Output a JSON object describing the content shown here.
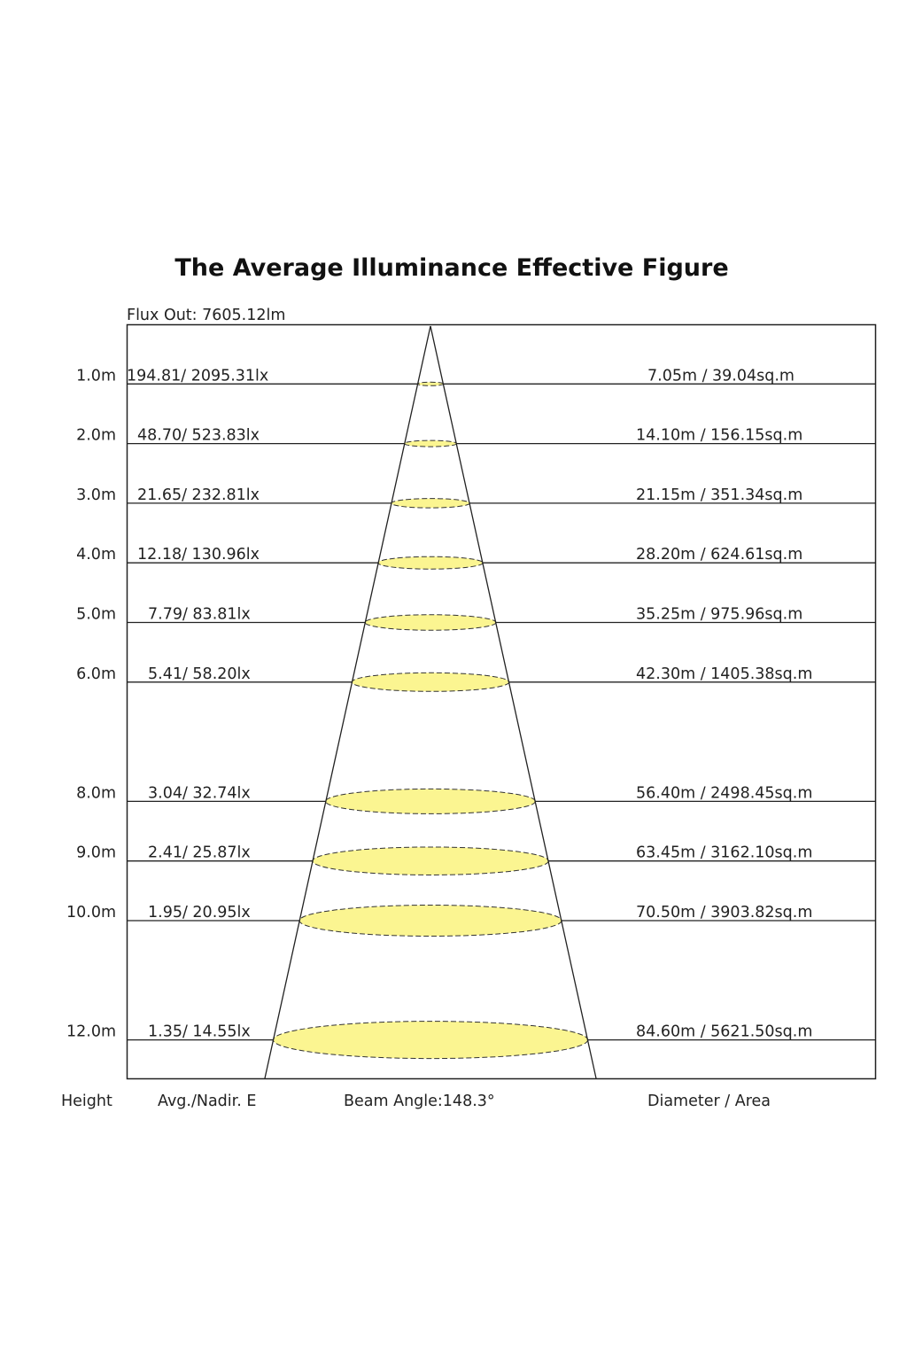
{
  "title": "The Average Illuminance Effective Figure",
  "flux_out": "Flux Out: 7605.12lm",
  "footer": {
    "height": "Height",
    "avg_nadir": "Avg./Nadir. E",
    "beam_angle": "Beam Angle:148.3°",
    "diameter_area": "Diameter / Area"
  },
  "colors": {
    "spot_fill": "#fbf591",
    "line": "#222222"
  },
  "chart_data": {
    "type": "table",
    "beam_angle_deg": 148.3,
    "rows": [
      {
        "height_label": "1.0m",
        "height": 1.0,
        "illuminance": "194.81/ 2095.31lx",
        "diameter_area": "7.05m / 39.04sq.m"
      },
      {
        "height_label": "2.0m",
        "height": 2.0,
        "illuminance": "48.70/ 523.83lx",
        "diameter_area": "14.10m / 156.15sq.m"
      },
      {
        "height_label": "3.0m",
        "height": 3.0,
        "illuminance": "21.65/ 232.81lx",
        "diameter_area": "21.15m / 351.34sq.m"
      },
      {
        "height_label": "4.0m",
        "height": 4.0,
        "illuminance": "12.18/ 130.96lx",
        "diameter_area": "28.20m / 624.61sq.m"
      },
      {
        "height_label": "5.0m",
        "height": 5.0,
        "illuminance": "7.79/ 83.81lx",
        "diameter_area": "35.25m / 975.96sq.m"
      },
      {
        "height_label": "6.0m",
        "height": 6.0,
        "illuminance": "5.41/ 58.20lx",
        "diameter_area": "42.30m / 1405.38sq.m"
      },
      {
        "height_label": "8.0m",
        "height": 8.0,
        "illuminance": "3.04/ 32.74lx",
        "diameter_area": "56.40m / 2498.45sq.m"
      },
      {
        "height_label": "9.0m",
        "height": 9.0,
        "illuminance": "2.41/ 25.87lx",
        "diameter_area": "63.45m / 3162.10sq.m"
      },
      {
        "height_label": "10.0m",
        "height": 10.0,
        "illuminance": "1.95/ 20.95lx",
        "diameter_area": "70.50m / 3903.82sq.m"
      },
      {
        "height_label": "12.0m",
        "height": 12.0,
        "illuminance": "1.35/ 14.55lx",
        "diameter_area": "84.60m / 5621.50sq.m"
      }
    ]
  }
}
